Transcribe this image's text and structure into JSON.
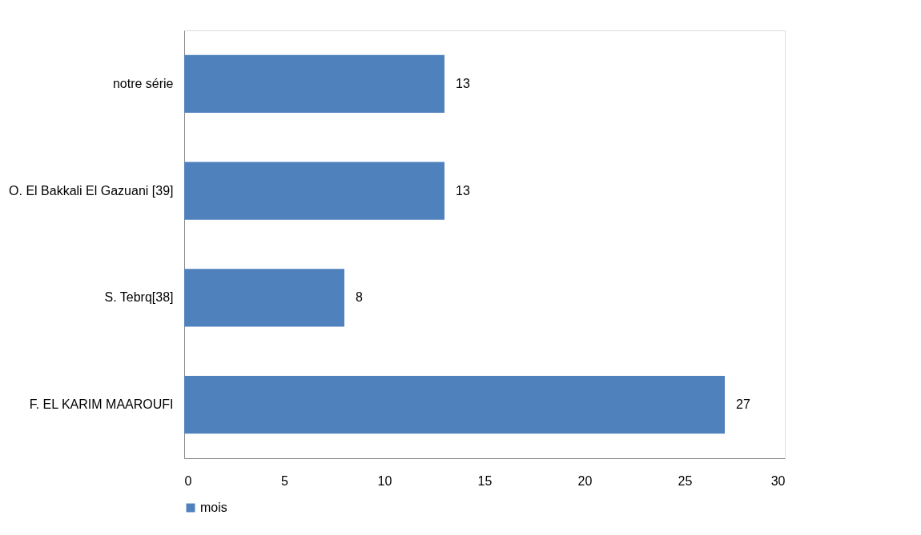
{
  "chart_data": {
    "type": "bar",
    "orientation": "horizontal",
    "categories": [
      "notre série",
      "O. El Bakkali El Gazuani [39]",
      "S. Tebrq[38]",
      "F. EL KARIM MAAROUFI"
    ],
    "series": [
      {
        "name": "mois",
        "color": "#4f81bd",
        "values": [
          13,
          13,
          8,
          27
        ]
      }
    ],
    "xlim": [
      0,
      30
    ],
    "xticks": [
      0,
      5,
      10,
      15,
      20,
      25,
      30
    ],
    "grid": false,
    "legend": "bottom",
    "data_labels": true
  }
}
